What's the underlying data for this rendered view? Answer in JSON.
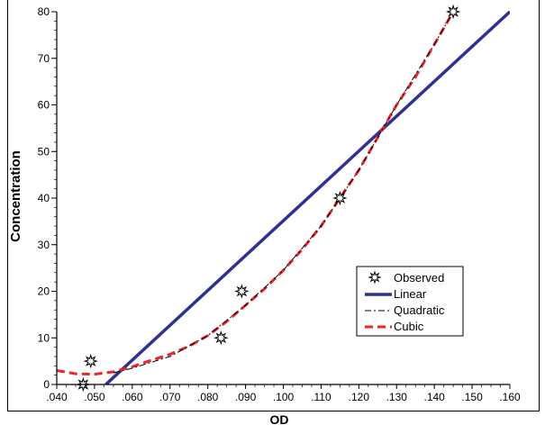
{
  "chart_data": {
    "type": "line",
    "xlabel": "OD",
    "ylabel": "Concentration",
    "xlim": [
      0.04,
      0.16
    ],
    "ylim": [
      0,
      80
    ],
    "x_ticks": [
      ".040",
      ".050",
      ".060",
      ".070",
      ".080",
      ".090",
      ".100",
      ".110",
      ".120",
      ".130",
      ".140",
      ".150",
      ".160"
    ],
    "y_ticks": [
      "0",
      "10",
      "20",
      "30",
      "40",
      "50",
      "60",
      "70",
      "80"
    ],
    "grid": true,
    "legend_position": "bottom-right",
    "legend": [
      "Observed",
      "Linear",
      "Quadratic",
      "Cubic"
    ],
    "series": [
      {
        "name": "Observed",
        "kind": "scatter",
        "color": "#000000",
        "points": [
          [
            0.047,
            0
          ],
          [
            0.049,
            5
          ],
          [
            0.0835,
            10
          ],
          [
            0.089,
            20
          ],
          [
            0.115,
            40
          ],
          [
            0.145,
            80
          ]
        ]
      },
      {
        "name": "Linear",
        "kind": "line",
        "color": "#2e3192",
        "points": [
          [
            0.053,
            0
          ],
          [
            0.16,
            80
          ]
        ]
      },
      {
        "name": "Quadratic",
        "kind": "line",
        "color": "#000000",
        "points": [
          [
            0.055,
            2.5
          ],
          [
            0.06,
            3.5
          ],
          [
            0.07,
            6
          ],
          [
            0.08,
            10.5
          ],
          [
            0.09,
            17
          ],
          [
            0.1,
            24.5
          ],
          [
            0.11,
            34
          ],
          [
            0.12,
            46
          ],
          [
            0.13,
            60
          ],
          [
            0.14,
            73
          ],
          [
            0.145,
            80
          ]
        ]
      },
      {
        "name": "Cubic",
        "kind": "line",
        "color": "#e8262d",
        "points": [
          [
            0.04,
            3
          ],
          [
            0.045,
            2.3
          ],
          [
            0.05,
            2.2
          ],
          [
            0.055,
            2.7
          ],
          [
            0.06,
            3.8
          ],
          [
            0.065,
            5.2
          ],
          [
            0.07,
            6.5
          ],
          [
            0.075,
            8.2
          ],
          [
            0.08,
            10.5
          ],
          [
            0.085,
            13.5
          ],
          [
            0.09,
            17
          ],
          [
            0.095,
            20.5
          ],
          [
            0.1,
            24.5
          ],
          [
            0.105,
            29
          ],
          [
            0.11,
            34
          ],
          [
            0.115,
            40
          ],
          [
            0.12,
            46
          ],
          [
            0.125,
            53
          ],
          [
            0.13,
            60
          ],
          [
            0.135,
            66
          ],
          [
            0.14,
            73
          ],
          [
            0.145,
            80
          ]
        ]
      }
    ]
  }
}
